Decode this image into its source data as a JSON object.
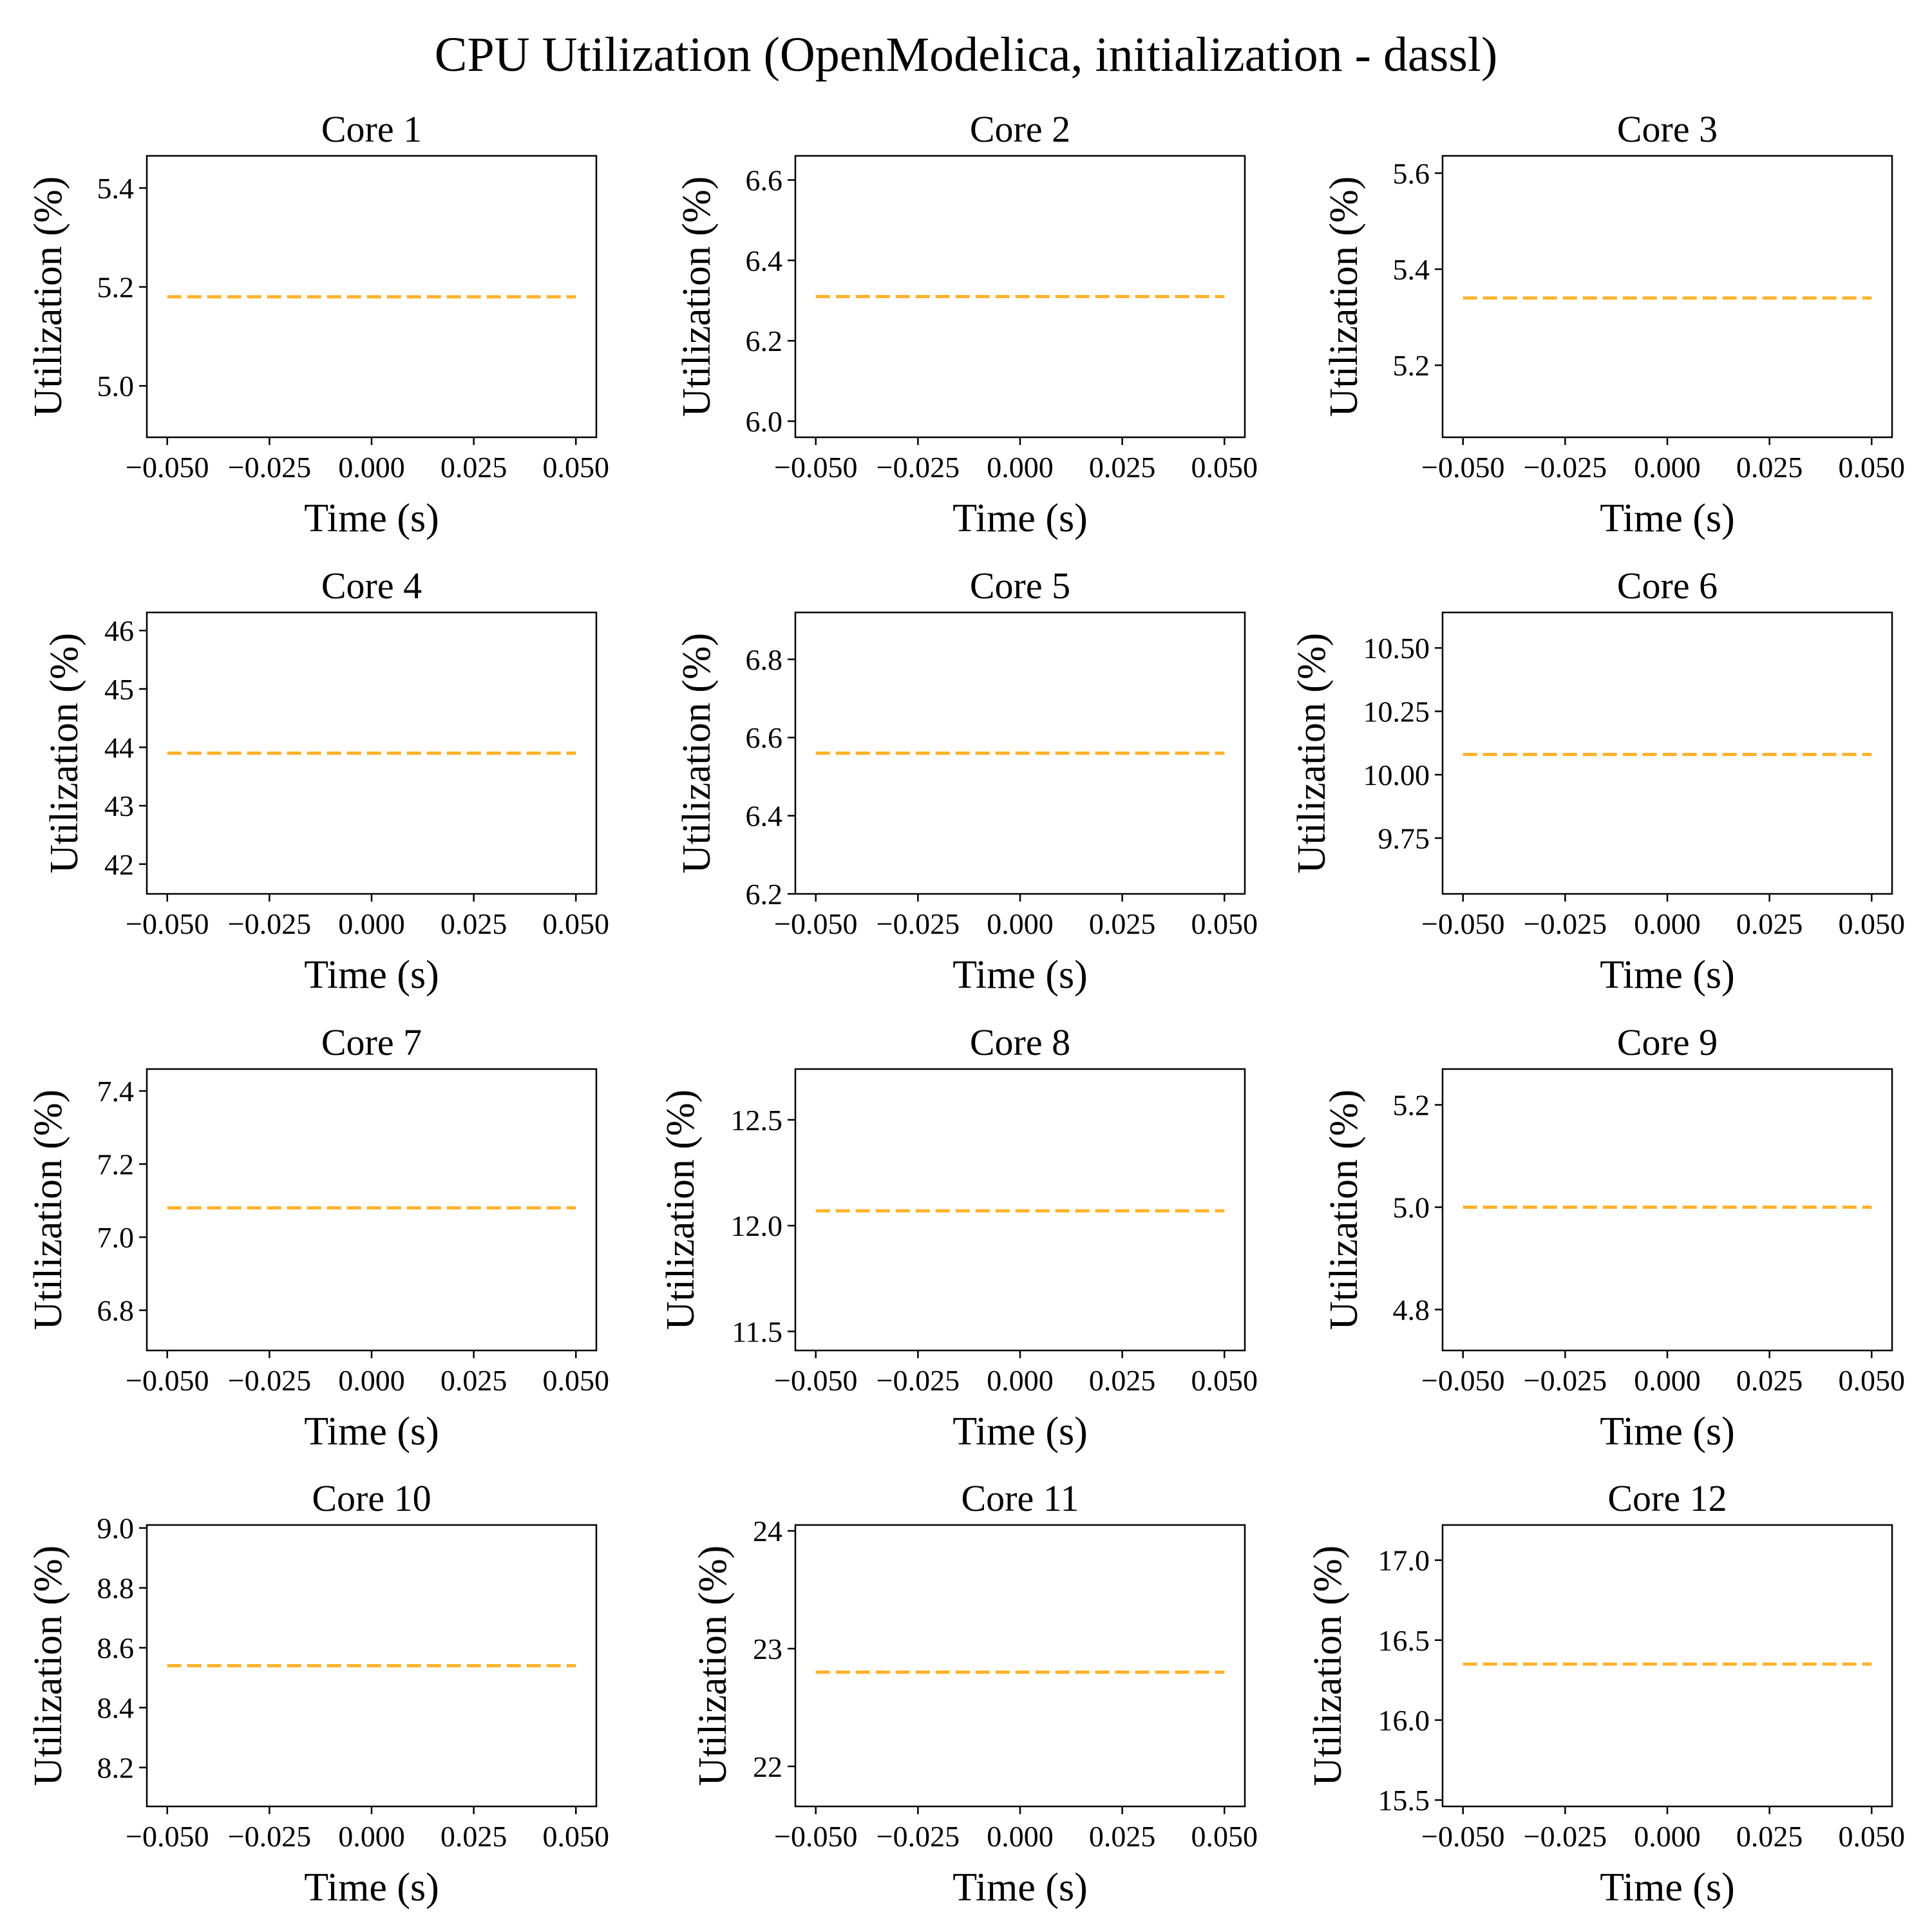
{
  "figure": {
    "title": "CPU Utilization (OpenModelica, initialization - dassl)"
  },
  "style": {
    "line_color": "#FFB22C",
    "axis_color": "#000000",
    "background": "#ffffff"
  },
  "chart_data": [
    {
      "type": "line",
      "title": "Core 1",
      "xlabel": "Time (s)",
      "ylabel": "Utilization (%)",
      "xlim": [
        -0.055,
        0.055
      ],
      "ylim": [
        4.896,
        5.465
      ],
      "xticks": [
        "−0.050",
        "−0.025",
        "0.000",
        "0.025",
        "0.050"
      ],
      "yticks": [
        "5.0",
        "5.2",
        "5.4"
      ],
      "series": [
        {
          "x": [
            -0.05,
            0.05
          ],
          "y": [
            5.18,
            5.18
          ],
          "style": "dashed"
        }
      ]
    },
    {
      "type": "line",
      "title": "Core 2",
      "xlabel": "Time (s)",
      "ylabel": "Utilization (%)",
      "xlim": [
        -0.055,
        0.055
      ],
      "ylim": [
        5.96,
        6.66
      ],
      "xticks": [
        "−0.050",
        "−0.025",
        "0.000",
        "0.025",
        "0.050"
      ],
      "yticks": [
        "6.0",
        "6.2",
        "6.4",
        "6.6"
      ],
      "series": [
        {
          "x": [
            -0.05,
            0.05
          ],
          "y": [
            6.31,
            6.31
          ],
          "style": "dashed"
        }
      ]
    },
    {
      "type": "line",
      "title": "Core 3",
      "xlabel": "Time (s)",
      "ylabel": "Utilization (%)",
      "xlim": [
        -0.055,
        0.055
      ],
      "ylim": [
        5.05,
        5.636
      ],
      "xticks": [
        "−0.050",
        "−0.025",
        "0.000",
        "0.025",
        "0.050"
      ],
      "yticks": [
        "5.2",
        "5.4",
        "5.6"
      ],
      "series": [
        {
          "x": [
            -0.05,
            0.05
          ],
          "y": [
            5.34,
            5.34
          ],
          "style": "dashed"
        }
      ]
    },
    {
      "type": "line",
      "title": "Core 4",
      "xlabel": "Time (s)",
      "ylabel": "Utilization (%)",
      "xlim": [
        -0.055,
        0.055
      ],
      "ylim": [
        41.49,
        46.31
      ],
      "xticks": [
        "−0.050",
        "−0.025",
        "0.000",
        "0.025",
        "0.050"
      ],
      "yticks": [
        "42",
        "43",
        "44",
        "45",
        "46"
      ],
      "series": [
        {
          "x": [
            -0.05,
            0.05
          ],
          "y": [
            43.9,
            43.9
          ],
          "style": "dashed"
        }
      ]
    },
    {
      "type": "line",
      "title": "Core 5",
      "xlabel": "Time (s)",
      "ylabel": "Utilization (%)",
      "xlim": [
        -0.055,
        0.055
      ],
      "ylim": [
        6.2,
        6.92
      ],
      "xticks": [
        "−0.050",
        "−0.025",
        "0.000",
        "0.025",
        "0.050"
      ],
      "yticks": [
        "6.2",
        "6.4",
        "6.6",
        "6.8"
      ],
      "series": [
        {
          "x": [
            -0.05,
            0.05
          ],
          "y": [
            6.56,
            6.56
          ],
          "style": "dashed"
        }
      ]
    },
    {
      "type": "line",
      "title": "Core 6",
      "xlabel": "Time (s)",
      "ylabel": "Utilization (%)",
      "xlim": [
        -0.055,
        0.055
      ],
      "ylim": [
        9.53,
        10.64
      ],
      "xticks": [
        "−0.050",
        "−0.025",
        "0.000",
        "0.025",
        "0.050"
      ],
      "yticks": [
        "9.75",
        "10.00",
        "10.25",
        "10.50"
      ],
      "series": [
        {
          "x": [
            -0.05,
            0.05
          ],
          "y": [
            10.08,
            10.08
          ],
          "style": "dashed"
        }
      ]
    },
    {
      "type": "line",
      "title": "Core 7",
      "xlabel": "Time (s)",
      "ylabel": "Utilization (%)",
      "xlim": [
        -0.055,
        0.055
      ],
      "ylim": [
        6.69,
        7.46
      ],
      "xticks": [
        "−0.050",
        "−0.025",
        "0.000",
        "0.025",
        "0.050"
      ],
      "yticks": [
        "6.8",
        "7.0",
        "7.2",
        "7.4"
      ],
      "series": [
        {
          "x": [
            -0.05,
            0.05
          ],
          "y": [
            7.08,
            7.08
          ],
          "style": "dashed"
        }
      ]
    },
    {
      "type": "line",
      "title": "Core 8",
      "xlabel": "Time (s)",
      "ylabel": "Utilization (%)",
      "xlim": [
        -0.055,
        0.055
      ],
      "ylim": [
        11.41,
        12.74
      ],
      "xticks": [
        "−0.050",
        "−0.025",
        "0.000",
        "0.025",
        "0.050"
      ],
      "yticks": [
        "11.5",
        "12.0",
        "12.5"
      ],
      "series": [
        {
          "x": [
            -0.05,
            0.05
          ],
          "y": [
            12.07,
            12.07
          ],
          "style": "dashed"
        }
      ]
    },
    {
      "type": "line",
      "title": "Core 9",
      "xlabel": "Time (s)",
      "ylabel": "Utilization (%)",
      "xlim": [
        -0.055,
        0.055
      ],
      "ylim": [
        4.72,
        5.27
      ],
      "xticks": [
        "−0.050",
        "−0.025",
        "0.000",
        "0.025",
        "0.050"
      ],
      "yticks": [
        "4.8",
        "5.0",
        "5.2"
      ],
      "series": [
        {
          "x": [
            -0.05,
            0.05
          ],
          "y": [
            5.0,
            5.0
          ],
          "style": "dashed"
        }
      ]
    },
    {
      "type": "line",
      "title": "Core 10",
      "xlabel": "Time (s)",
      "ylabel": "Utilization (%)",
      "xlim": [
        -0.055,
        0.055
      ],
      "ylim": [
        8.07,
        9.01
      ],
      "xticks": [
        "−0.050",
        "−0.025",
        "0.000",
        "0.025",
        "0.050"
      ],
      "yticks": [
        "8.2",
        "8.4",
        "8.6",
        "8.8",
        "9.0"
      ],
      "series": [
        {
          "x": [
            -0.05,
            0.05
          ],
          "y": [
            8.54,
            8.54
          ],
          "style": "dashed"
        }
      ]
    },
    {
      "type": "line",
      "title": "Core 11",
      "xlabel": "Time (s)",
      "ylabel": "Utilization (%)",
      "xlim": [
        -0.055,
        0.055
      ],
      "ylim": [
        21.66,
        24.05
      ],
      "xticks": [
        "−0.050",
        "−0.025",
        "0.000",
        "0.025",
        "0.050"
      ],
      "yticks": [
        "22",
        "23",
        "24"
      ],
      "series": [
        {
          "x": [
            -0.05,
            0.05
          ],
          "y": [
            22.8,
            22.8
          ],
          "style": "dashed"
        }
      ]
    },
    {
      "type": "line",
      "title": "Core 12",
      "xlabel": "Time (s)",
      "ylabel": "Utilization (%)",
      "xlim": [
        -0.055,
        0.055
      ],
      "ylim": [
        15.46,
        17.22
      ],
      "xticks": [
        "−0.050",
        "−0.025",
        "0.000",
        "0.025",
        "0.050"
      ],
      "yticks": [
        "15.5",
        "16.0",
        "16.5",
        "17.0"
      ],
      "series": [
        {
          "x": [
            -0.05,
            0.05
          ],
          "y": [
            16.35,
            16.35
          ],
          "style": "dashed"
        }
      ]
    }
  ]
}
